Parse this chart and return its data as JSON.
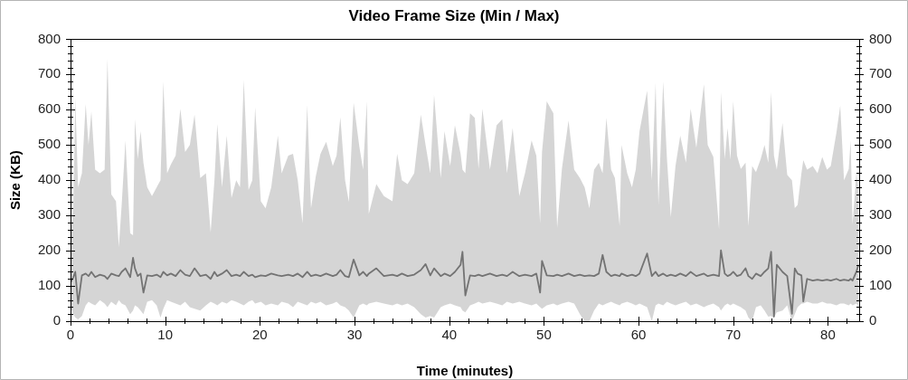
{
  "chart_data": {
    "type": "line",
    "title": "Video Frame Size (Min / Max)",
    "xlabel": "Time (minutes)",
    "ylabel": "Size (KB)",
    "marker": "none",
    "line_style": "solid",
    "x": [
      0,
      0.3,
      0.5,
      0.8,
      1.2,
      1.6,
      1.9,
      2.2,
      2.6,
      3.1,
      3.6,
      3.9,
      4.3,
      4.8,
      5.1,
      5.4,
      5.8,
      6.3,
      6.6,
      6.8,
      7.1,
      7.4,
      7.7,
      8.1,
      8.6,
      9.1,
      9.5,
      9.8,
      10.2,
      10.6,
      11.1,
      11.6,
      12.1,
      12.6,
      13.1,
      13.7,
      14.3,
      14.8,
      15.2,
      15.5,
      16.0,
      16.5,
      17.0,
      17.5,
      17.9,
      18.3,
      18.8,
      19.2,
      19.5,
      20.1,
      20.6,
      21.2,
      21.9,
      22.3,
      23.0,
      23.5,
      24.0,
      24.5,
      25.0,
      25.4,
      25.9,
      26.4,
      27.0,
      27.7,
      28.1,
      28.5,
      29.0,
      29.4,
      29.9,
      30.5,
      30.9,
      31.3,
      31.5,
      32.3,
      33.1,
      34.0,
      34.5,
      35.0,
      35.6,
      36.3,
      37.0,
      37.5,
      38.0,
      38.4,
      39.1,
      39.5,
      40.1,
      40.6,
      41.2,
      41.4,
      41.7,
      42.2,
      42.7,
      43.1,
      43.5,
      44.3,
      45.0,
      45.6,
      46.1,
      46.7,
      47.4,
      48.0,
      48.7,
      49.2,
      49.6,
      49.8,
      50.3,
      51.0,
      51.4,
      51.9,
      52.6,
      53.2,
      53.8,
      54.3,
      54.8,
      55.3,
      55.8,
      56.2,
      56.6,
      57.1,
      57.5,
      58.0,
      58.2,
      58.8,
      59.3,
      59.7,
      60.1,
      60.9,
      61.4,
      61.8,
      62.1,
      62.6,
      63.0,
      63.4,
      63.9,
      64.4,
      65.0,
      65.5,
      66.1,
      66.9,
      67.3,
      67.9,
      68.5,
      68.7,
      69.1,
      69.4,
      69.7,
      70.0,
      70.4,
      70.8,
      71.3,
      71.6,
      72.0,
      72.4,
      72.9,
      73.3,
      73.7,
      74.0,
      74.3,
      74.6,
      75.2,
      75.7,
      76.2,
      76.5,
      76.8,
      77.2,
      77.4,
      77.8,
      78.4,
      78.9,
      79.4,
      79.9,
      80.3,
      80.9,
      81.3,
      81.7,
      82.2,
      82.4,
      82.6,
      83.0,
      83.2
    ],
    "series": [
      {
        "color": "#737373",
        "values": [
          110,
          125,
          140,
          50,
          130,
          135,
          128,
          140,
          125,
          132,
          128,
          120,
          135,
          130,
          128,
          140,
          150,
          125,
          180,
          150,
          128,
          135,
          81,
          130,
          128,
          132,
          125,
          140,
          130,
          135,
          128,
          145,
          132,
          128,
          150,
          128,
          132,
          120,
          140,
          128,
          135,
          145,
          128,
          132,
          128,
          140,
          128,
          132,
          125,
          130,
          128,
          135,
          130,
          128,
          132,
          128,
          135,
          125,
          140,
          128,
          132,
          128,
          135,
          128,
          132,
          145,
          128,
          125,
          175,
          130,
          140,
          128,
          135,
          150,
          128,
          132,
          128,
          135,
          128,
          132,
          145,
          162,
          130,
          150,
          128,
          135,
          128,
          140,
          160,
          197,
          73,
          130,
          128,
          132,
          128,
          135,
          128,
          132,
          128,
          140,
          128,
          132,
          128,
          135,
          81,
          171,
          130,
          128,
          132,
          128,
          135,
          128,
          132,
          128,
          130,
          128,
          135,
          188,
          140,
          128,
          132,
          128,
          135,
          128,
          132,
          128,
          135,
          192,
          128,
          140,
          128,
          135,
          128,
          132,
          128,
          135,
          128,
          140,
          128,
          135,
          128,
          132,
          128,
          201,
          135,
          128,
          132,
          140,
          128,
          132,
          150,
          128,
          120,
          135,
          128,
          140,
          150,
          197,
          13,
          160,
          140,
          128,
          21,
          150,
          135,
          130,
          56,
          120,
          115,
          118,
          115,
          118,
          115,
          120,
          115,
          118,
          115,
          120,
          115,
          140,
          158
        ],
        "lower": [
          40,
          20,
          10,
          5,
          15,
          45,
          55,
          50,
          45,
          60,
          50,
          40,
          55,
          45,
          60,
          50,
          45,
          20,
          30,
          45,
          40,
          30,
          20,
          55,
          60,
          45,
          10,
          35,
          60,
          55,
          50,
          45,
          55,
          40,
          35,
          30,
          45,
          55,
          50,
          45,
          55,
          50,
          60,
          55,
          50,
          45,
          55,
          60,
          50,
          55,
          45,
          50,
          45,
          55,
          50,
          40,
          55,
          50,
          45,
          55,
          50,
          55,
          45,
          50,
          55,
          45,
          40,
          30,
          10,
          45,
          50,
          45,
          50,
          55,
          50,
          45,
          50,
          45,
          50,
          40,
          20,
          10,
          15,
          10,
          40,
          45,
          50,
          45,
          40,
          30,
          25,
          45,
          50,
          55,
          50,
          55,
          50,
          45,
          55,
          50,
          55,
          50,
          45,
          50,
          40,
          35,
          45,
          50,
          45,
          50,
          55,
          50,
          20,
          0,
          0,
          30,
          50,
          45,
          50,
          55,
          50,
          45,
          50,
          55,
          50,
          45,
          50,
          40,
          0,
          45,
          50,
          45,
          55,
          50,
          45,
          50,
          55,
          45,
          50,
          40,
          45,
          50,
          40,
          30,
          45,
          50,
          45,
          50,
          45,
          40,
          30,
          10,
          0,
          40,
          45,
          30,
          13,
          15,
          10,
          25,
          30,
          45,
          0,
          20,
          40,
          50,
          50,
          55,
          50,
          50,
          55,
          50,
          50,
          45,
          50,
          50,
          45,
          50,
          45,
          50,
          45
        ],
        "upper": [
          244,
          320,
          633,
          380,
          420,
          616,
          500,
          595,
          430,
          420,
          430,
          744,
          360,
          340,
          210,
          330,
          513,
          250,
          244,
          573,
          460,
          539,
          449,
          380,
          355,
          380,
          400,
          680,
          420,
          445,
          470,
          603,
          480,
          500,
          586,
          406,
          420,
          252,
          400,
          560,
          380,
          526,
          350,
          400,
          380,
          684,
          372,
          400,
          607,
          340,
          320,
          380,
          526,
          420,
          470,
          475,
          400,
          278,
          613,
          320,
          410,
          475,
          509,
          440,
          470,
          579,
          400,
          338,
          620,
          496,
          430,
          624,
          304,
          389,
          355,
          340,
          475,
          400,
          389,
          420,
          586,
          500,
          420,
          642,
          406,
          539,
          440,
          556,
          475,
          430,
          420,
          590,
          577,
          432,
          603,
          430,
          556,
          573,
          420,
          548,
          355,
          420,
          513,
          470,
          278,
          480,
          624,
          590,
          265,
          432,
          569,
          430,
          406,
          380,
          320,
          430,
          449,
          420,
          577,
          430,
          406,
          270,
          500,
          420,
          380,
          430,
          539,
          654,
          400,
          676,
          330,
          680,
          460,
          295,
          440,
          526,
          450,
          603,
          492,
          672,
          500,
          466,
          261,
          650,
          460,
          548,
          458,
          624,
          470,
          432,
          450,
          270,
          440,
          423,
          460,
          500,
          450,
          650,
          470,
          430,
          562,
          415,
          400,
          321,
          330,
          420,
          457,
          430,
          440,
          420,
          466,
          430,
          440,
          535,
          612,
          400,
          432,
          513,
          274,
          420,
          380
        ]
      }
    ],
    "xlim": [
      0,
      83.3
    ],
    "xticks": [
      0,
      {
        "value": 2,
        "label": null
      },
      {
        "value": 4,
        "label": null
      },
      {
        "value": 6,
        "label": null
      },
      {
        "value": 8,
        "label": null
      },
      10,
      {
        "value": 12,
        "label": null
      },
      {
        "value": 14,
        "label": null
      },
      {
        "value": 16,
        "label": null
      },
      {
        "value": 18,
        "label": null
      },
      20,
      {
        "value": 22,
        "label": null
      },
      {
        "value": 24,
        "label": null
      },
      {
        "value": 26,
        "label": null
      },
      {
        "value": 28,
        "label": null
      },
      30,
      {
        "value": 32,
        "label": null
      },
      {
        "value": 34,
        "label": null
      },
      {
        "value": 36,
        "label": null
      },
      {
        "value": 38,
        "label": null
      },
      40,
      {
        "value": 42,
        "label": null
      },
      {
        "value": 44,
        "label": null
      },
      {
        "value": 46,
        "label": null
      },
      {
        "value": 48,
        "label": null
      },
      50,
      {
        "value": 52,
        "label": null
      },
      {
        "value": 54,
        "label": null
      },
      {
        "value": 56,
        "label": null
      },
      {
        "value": 58,
        "label": null
      },
      60,
      {
        "value": 62,
        "label": null
      },
      {
        "value": 64,
        "label": null
      },
      {
        "value": 66,
        "label": null
      },
      {
        "value": 68,
        "label": null
      },
      70,
      {
        "value": 72,
        "label": null
      },
      {
        "value": 74,
        "label": null
      },
      {
        "value": 76,
        "label": null
      },
      {
        "value": 78,
        "label": null
      },
      80,
      {
        "value": 82,
        "label": null
      }
    ],
    "ylim": [
      0,
      800
    ],
    "yticks": [
      0,
      {
        "value": 20,
        "label": null
      },
      {
        "value": 40,
        "label": null
      },
      {
        "value": 60,
        "label": null
      },
      {
        "value": 80,
        "label": null
      },
      100,
      {
        "value": 120,
        "label": null
      },
      {
        "value": 140,
        "label": null
      },
      {
        "value": 160,
        "label": null
      },
      {
        "value": 180,
        "label": null
      },
      200,
      {
        "value": 220,
        "label": null
      },
      {
        "value": 240,
        "label": null
      },
      {
        "value": 260,
        "label": null
      },
      {
        "value": 280,
        "label": null
      },
      300,
      {
        "value": 320,
        "label": null
      },
      {
        "value": 340,
        "label": null
      },
      {
        "value": 360,
        "label": null
      },
      {
        "value": 380,
        "label": null
      },
      400,
      {
        "value": 420,
        "label": null
      },
      {
        "value": 440,
        "label": null
      },
      {
        "value": 460,
        "label": null
      },
      {
        "value": 480,
        "label": null
      },
      500,
      {
        "value": 520,
        "label": null
      },
      {
        "value": 540,
        "label": null
      },
      {
        "value": 560,
        "label": null
      },
      {
        "value": 580,
        "label": null
      },
      600,
      {
        "value": 620,
        "label": null
      },
      {
        "value": 640,
        "label": null
      },
      {
        "value": 660,
        "label": null
      },
      {
        "value": 680,
        "label": null
      },
      700,
      {
        "value": 720,
        "label": null
      },
      {
        "value": 740,
        "label": null
      },
      {
        "value": 760,
        "label": null
      },
      {
        "value": 780,
        "label": null
      },
      800
    ],
    "y2lim": [
      0,
      800
    ],
    "y2ticks": [
      0,
      {
        "value": 20,
        "label": null
      },
      {
        "value": 40,
        "label": null
      },
      {
        "value": 60,
        "label": null
      },
      {
        "value": 80,
        "label": null
      },
      100,
      {
        "value": 120,
        "label": null
      },
      {
        "value": 140,
        "label": null
      },
      {
        "value": 160,
        "label": null
      },
      {
        "value": 180,
        "label": null
      },
      200,
      {
        "value": 220,
        "label": null
      },
      {
        "value": 240,
        "label": null
      },
      {
        "value": 260,
        "label": null
      },
      {
        "value": 280,
        "label": null
      },
      300,
      {
        "value": 320,
        "label": null
      },
      {
        "value": 340,
        "label": null
      },
      {
        "value": 360,
        "label": null
      },
      {
        "value": 380,
        "label": null
      },
      400,
      {
        "value": 420,
        "label": null
      },
      {
        "value": 440,
        "label": null
      },
      {
        "value": 460,
        "label": null
      },
      {
        "value": 480,
        "label": null
      },
      500,
      {
        "value": 520,
        "label": null
      },
      {
        "value": 540,
        "label": null
      },
      {
        "value": 560,
        "label": null
      },
      {
        "value": 580,
        "label": null
      },
      600,
      {
        "value": 620,
        "label": null
      },
      {
        "value": 640,
        "label": null
      },
      {
        "value": 660,
        "label": null
      },
      {
        "value": 680,
        "label": null
      },
      700,
      {
        "value": 720,
        "label": null
      },
      {
        "value": 740,
        "label": null
      },
      {
        "value": 760,
        "label": null
      },
      {
        "value": 780,
        "label": null
      },
      800
    ]
  }
}
